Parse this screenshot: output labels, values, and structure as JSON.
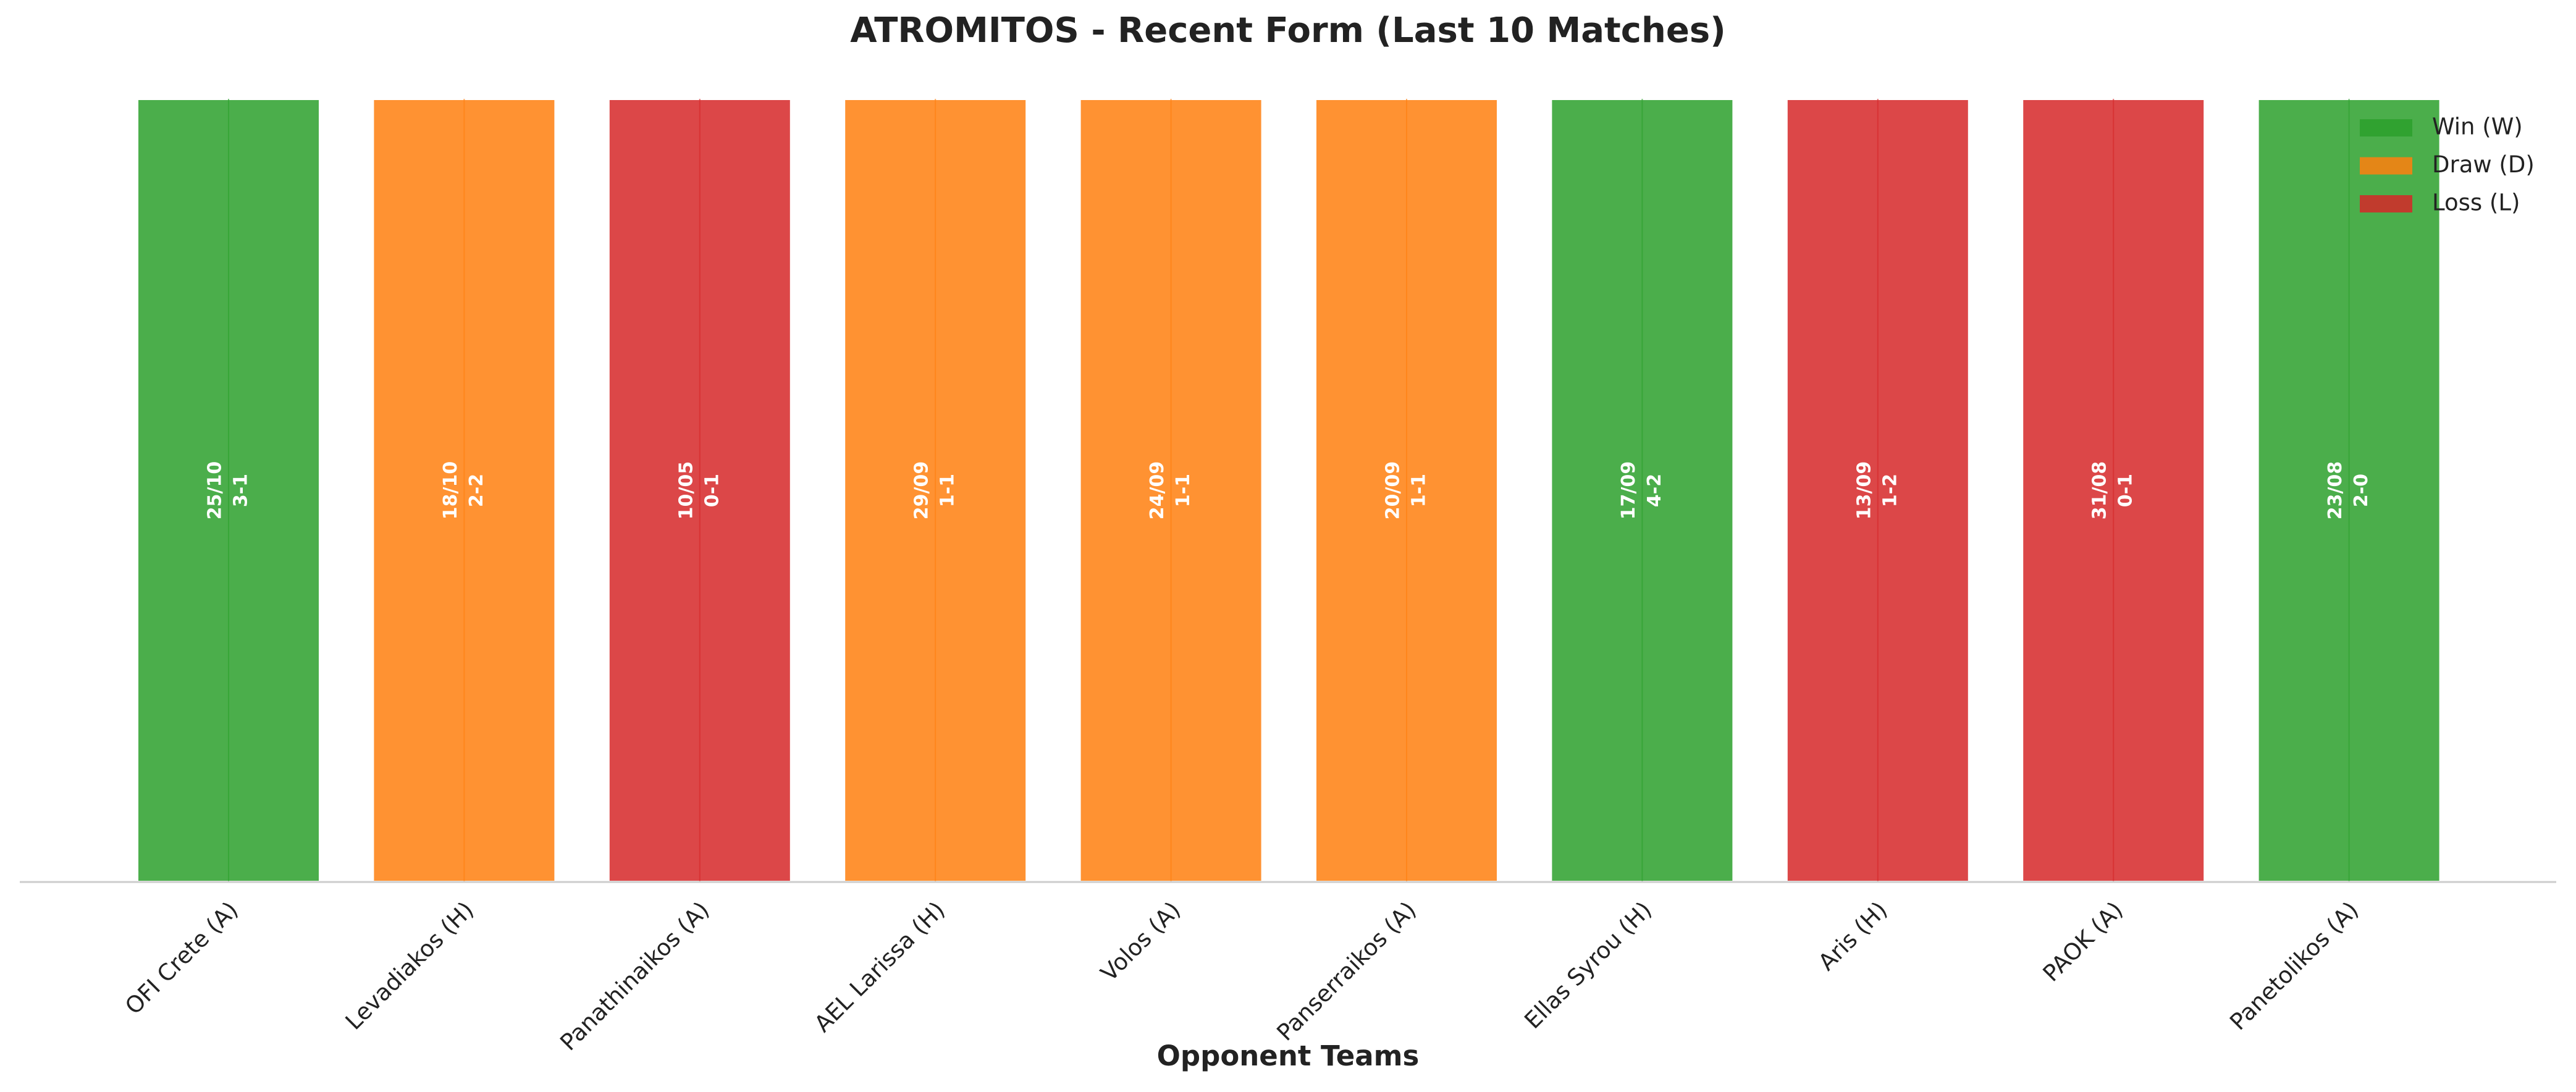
{
  "chart_data": {
    "type": "bar",
    "title": "ATROMITOS - Recent Form (Last 10 Matches)",
    "x_label": "Opponent Teams",
    "categories": [
      "OFI Crete (A)",
      "Levadiakos (H)",
      "Panathinaikos (A)",
      "AEL Larissa (H)",
      "Volos (A)",
      "Panserraikos (A)",
      "Ellas Syrou (H)",
      "Aris (H)",
      "PAOK (A)",
      "Panetolikos (A)"
    ],
    "values": [
      1,
      1,
      1,
      1,
      1,
      1,
      1,
      1,
      1,
      1
    ],
    "dates": [
      "25/10",
      "18/10",
      "10/05",
      "29/09",
      "24/09",
      "20/09",
      "17/09",
      "13/09",
      "31/08",
      "23/08"
    ],
    "scores": [
      "3-1",
      "2-2",
      "0-1",
      "1-1",
      "1-1",
      "1-1",
      "4-2",
      "1-2",
      "0-1",
      "2-0"
    ],
    "colors": [
      "#2ca02c",
      "#ff7f0e",
      "#d62728",
      "#ff7f0e",
      "#ff7f0e",
      "#ff7f0e",
      "#2ca02c",
      "#d62728",
      "#d62728",
      "#2ca02c"
    ],
    "ylim": [
      0,
      1
    ],
    "legend_position": "upper right",
    "legend": [
      {
        "name": "Win (W)",
        "color": "#2ca02c"
      },
      {
        "name": "Draw (D)",
        "color": "#ff7f0e"
      },
      {
        "name": "Loss (L)",
        "color": "#d62728"
      }
    ]
  }
}
